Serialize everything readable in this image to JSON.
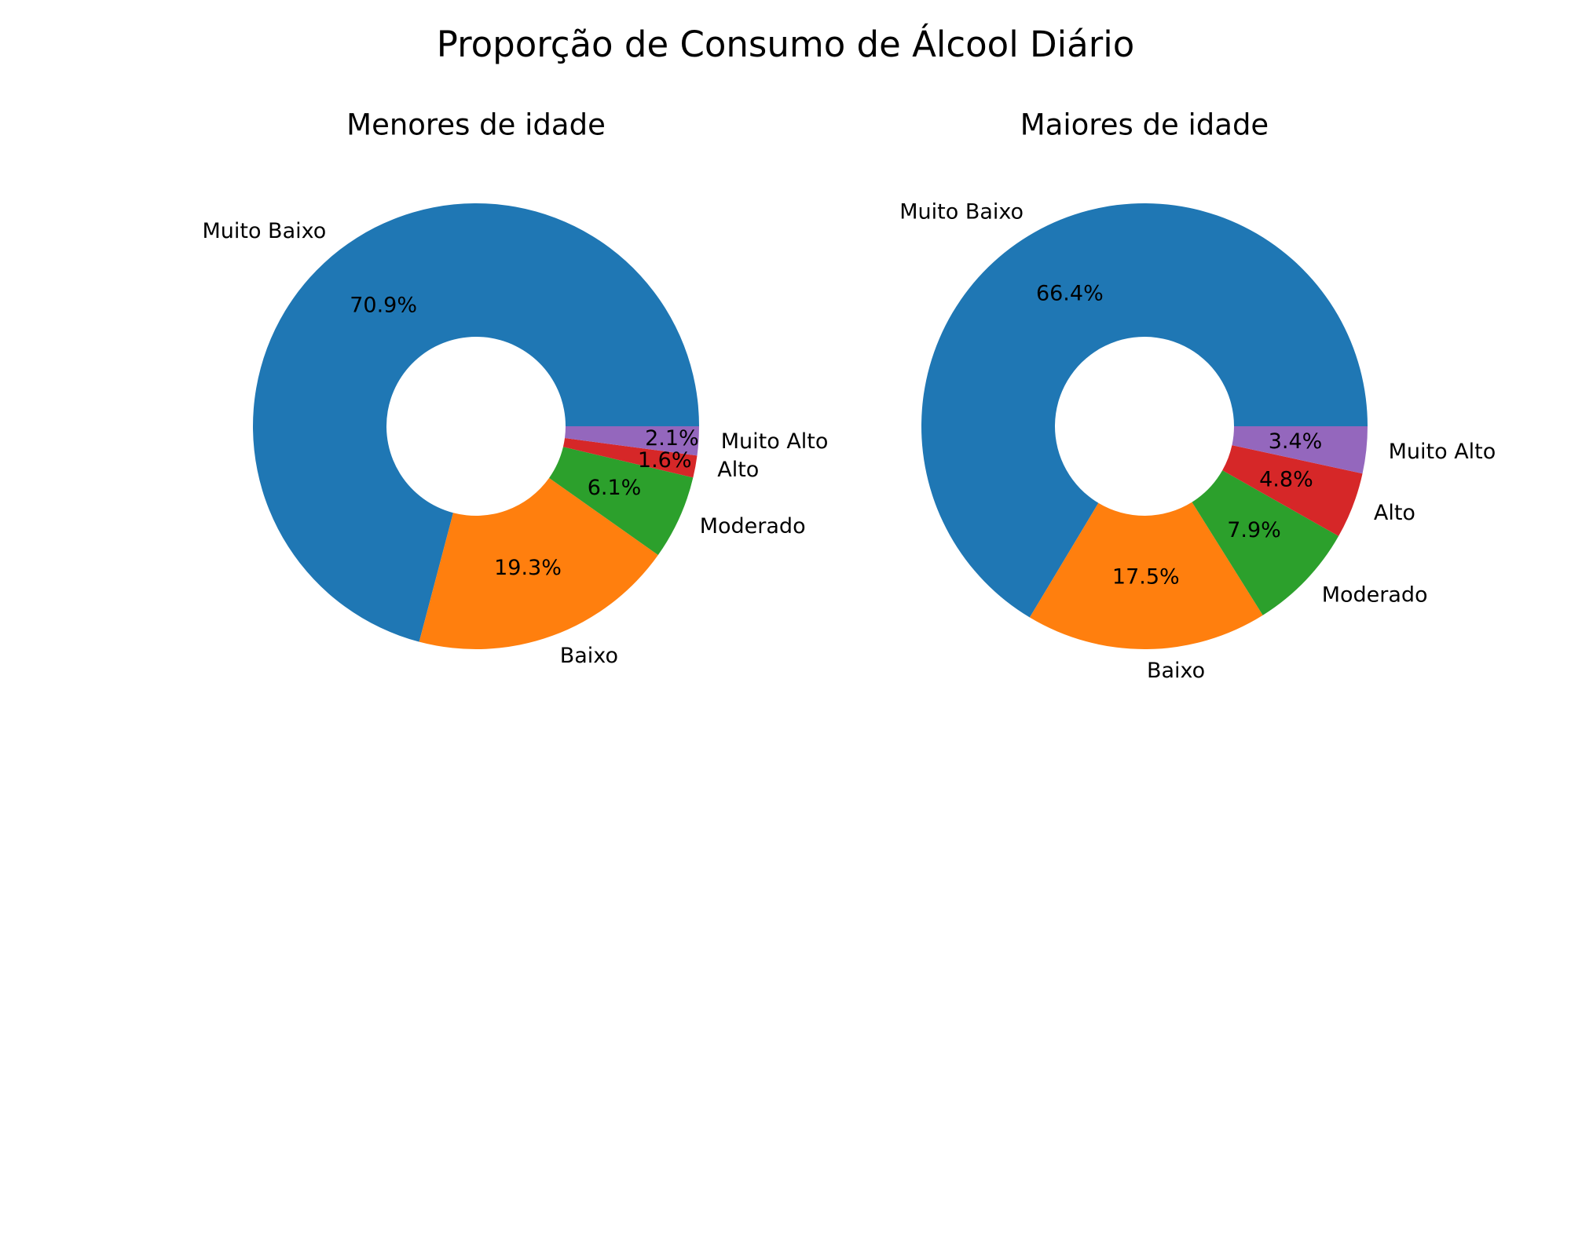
{
  "figure": {
    "title": "Proporção de Consumo de Álcool Diário"
  },
  "chart_data": [
    {
      "type": "pie",
      "donut": true,
      "title": "Menores de idade",
      "start_angle_deg": 0,
      "direction": "counterclockwise",
      "slices": [
        {
          "label": "Muito Baixo",
          "value": 70.9,
          "pct_text": "70.9%",
          "color": "#1f77b4"
        },
        {
          "label": "Baixo",
          "value": 19.3,
          "pct_text": "19.3%",
          "color": "#ff7f0e"
        },
        {
          "label": "Moderado",
          "value": 6.1,
          "pct_text": "6.1%",
          "color": "#2ca02c"
        },
        {
          "label": "Alto",
          "value": 1.6,
          "pct_text": "1.6%",
          "color": "#d62728"
        },
        {
          "label": "Muito Alto",
          "value": 2.1,
          "pct_text": "2.1%",
          "color": "#9467bd"
        }
      ]
    },
    {
      "type": "pie",
      "donut": true,
      "title": "Maiores de idade",
      "start_angle_deg": 0,
      "direction": "counterclockwise",
      "slices": [
        {
          "label": "Muito Baixo",
          "value": 66.4,
          "pct_text": "66.4%",
          "color": "#1f77b4"
        },
        {
          "label": "Baixo",
          "value": 17.5,
          "pct_text": "17.5%",
          "color": "#ff7f0e"
        },
        {
          "label": "Moderado",
          "value": 7.9,
          "pct_text": "7.9%",
          "color": "#2ca02c"
        },
        {
          "label": "Alto",
          "value": 4.8,
          "pct_text": "4.8%",
          "color": "#d62728"
        },
        {
          "label": "Muito Alto",
          "value": 3.4,
          "pct_text": "3.4%",
          "color": "#9467bd"
        }
      ]
    }
  ]
}
